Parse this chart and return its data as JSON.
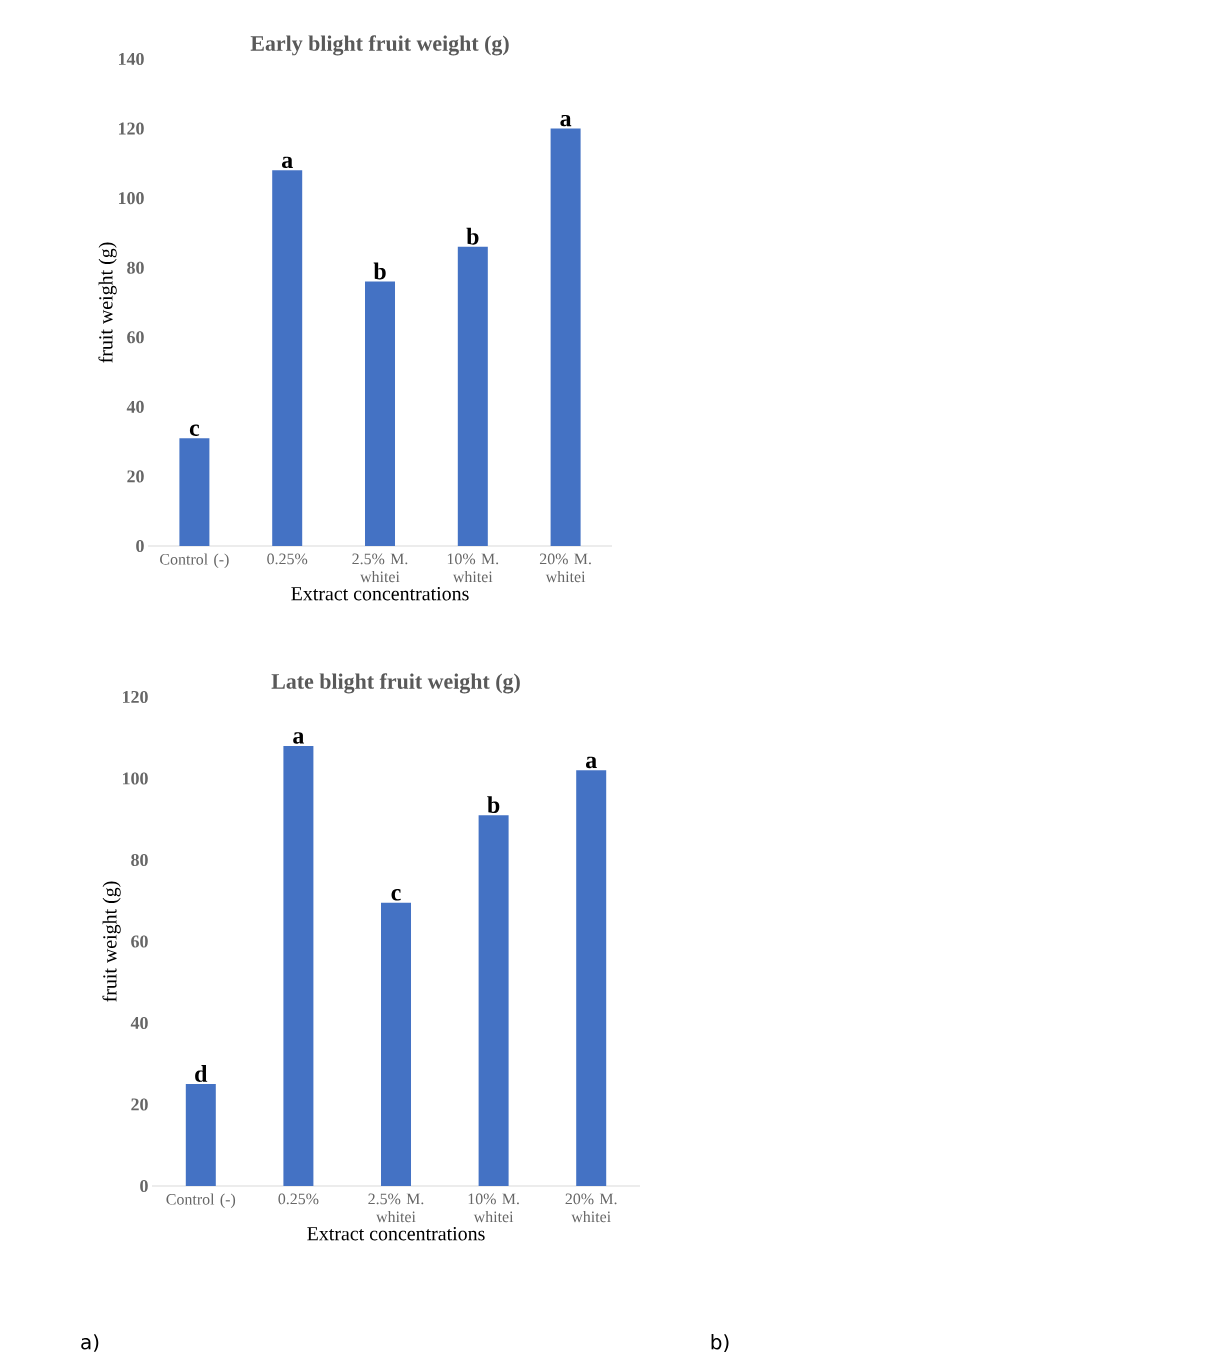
{
  "chart_data": [
    {
      "type": "bar",
      "title": "Early blight fruit weight (g)",
      "xlabel": "Extract concentrations",
      "ylabel": "fruit weight (g)",
      "categories": [
        "Control (-)",
        "0.25%",
        "2.5% M. whitei",
        "10% M. whitei",
        "20% M. whitei"
      ],
      "values": [
        31,
        108,
        76,
        86,
        120
      ],
      "color": "#4472c4",
      "ylim": [
        0,
        140
      ],
      "yticks": [
        0,
        20,
        40,
        60,
        80,
        100,
        120,
        140
      ],
      "grid": false,
      "annotations": [
        {
          "text": "c",
          "x": "Control (-)",
          "y": 31
        },
        {
          "text": "a",
          "x": "0.25%",
          "y": 108
        },
        {
          "text": "b",
          "x": "2.5% M. whitei",
          "y": 76
        },
        {
          "text": "b",
          "x": "10% M. whitei",
          "y": 86
        },
        {
          "text": "a",
          "x": "20% M. whitei",
          "y": 120
        }
      ]
    },
    {
      "type": "bar",
      "title": "Late blight fruit weight (g)",
      "xlabel": "Extract concentrations",
      "ylabel": "fruit weight (g)",
      "categories": [
        "Control (-)",
        "0.25%",
        "2.5% M. whitei",
        "10% M. whitei",
        "20% M. whitei"
      ],
      "values": [
        25,
        108,
        69.5,
        91,
        102
      ],
      "color": "#4472c4",
      "ylim": [
        0,
        120
      ],
      "yticks": [
        0,
        20,
        40,
        60,
        80,
        100,
        120
      ],
      "grid": false,
      "annotations": [
        {
          "text": "d",
          "x": "Control (-)",
          "y": 25
        },
        {
          "text": "a",
          "x": "0.25%",
          "y": 108
        },
        {
          "text": "c",
          "x": "2.5% M. whitei",
          "y": 69.5
        },
        {
          "text": "b",
          "x": "10% M. whitei",
          "y": 91
        },
        {
          "text": "a",
          "x": "20% M. whitei",
          "y": 102
        },
        "a)",
        "b)"
      ]
    }
  ]
}
